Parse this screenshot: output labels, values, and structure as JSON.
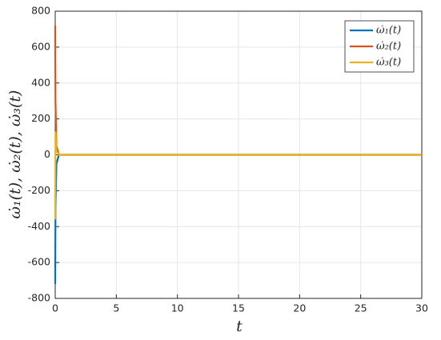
{
  "chart_data": {
    "type": "line",
    "x": [
      0,
      0.02,
      0.1,
      0.3,
      1,
      30
    ],
    "series": [
      {
        "name": "ω̇₁(t)",
        "color": "#0072bd",
        "values": [
          -720,
          -300,
          -50,
          0,
          0,
          0
        ]
      },
      {
        "name": "ω̇₂(t)",
        "color": "#d95319",
        "values": [
          720,
          300,
          50,
          0,
          0,
          0
        ]
      },
      {
        "name": "ω̇₃(t)",
        "color": "#edb120",
        "values": [
          -360,
          130,
          20,
          0,
          0,
          0
        ]
      }
    ],
    "xlabel": "t",
    "ylabel": "ω̇₁(t), ω̇₂(t), ω̇₃(t)",
    "xlim": [
      0,
      30
    ],
    "xticks": [
      0,
      5,
      10,
      15,
      20,
      25,
      30
    ],
    "ylim": [
      -800,
      800
    ],
    "yticks": [
      -800,
      -600,
      -400,
      -200,
      0,
      200,
      400,
      600,
      800
    ],
    "grid": true,
    "legend": "northeast"
  }
}
